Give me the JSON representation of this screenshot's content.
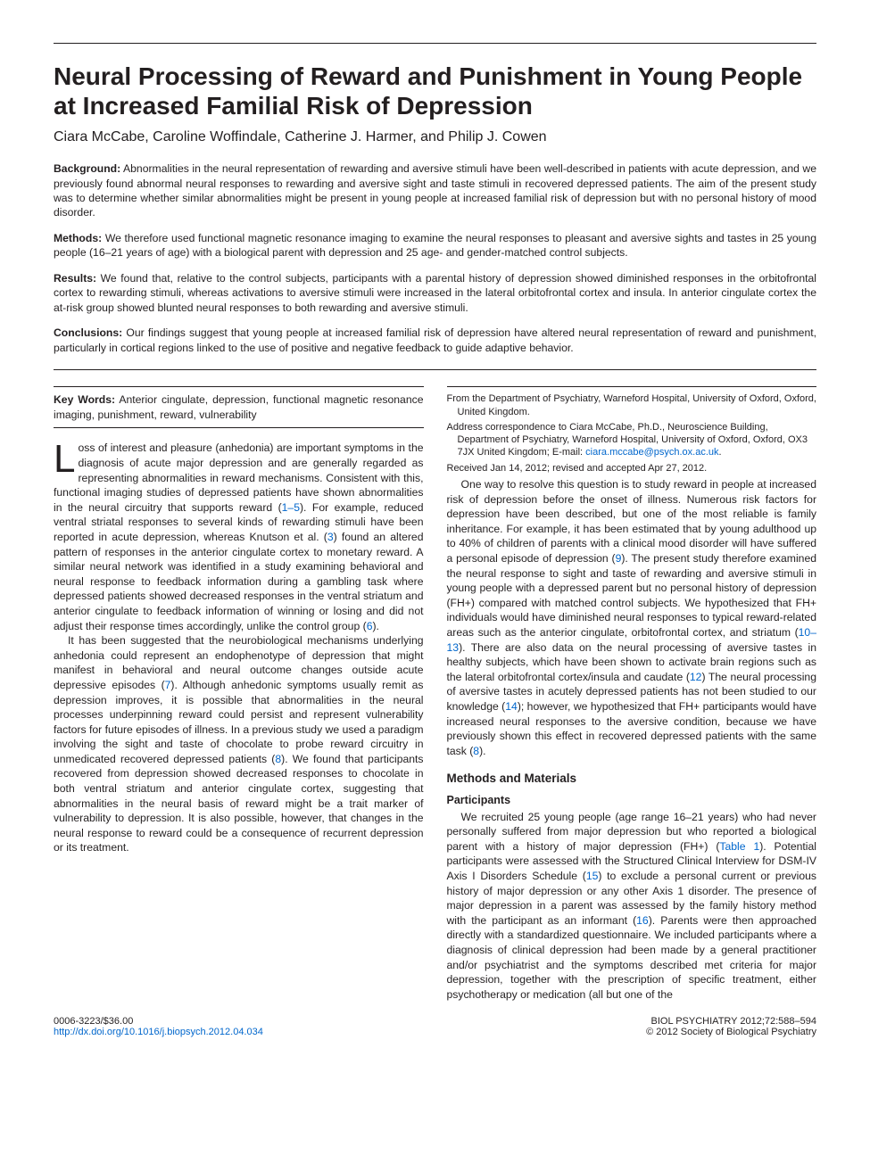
{
  "title": "Neural Processing of Reward and Punishment in Young People at Increased Familial Risk of Depression",
  "authors": "Ciara McCabe, Caroline Woffindale, Catherine J. Harmer, and Philip J. Cowen",
  "abstract": {
    "background": {
      "label": "Background:",
      "text": " Abnormalities in the neural representation of rewarding and aversive stimuli have been well-described in patients with acute depression, and we previously found abnormal neural responses to rewarding and aversive sight and taste stimuli in recovered depressed patients. The aim of the present study was to determine whether similar abnormalities might be present in young people at increased familial risk of depression but with no personal history of mood disorder."
    },
    "methods": {
      "label": "Methods:",
      "text": " We therefore used functional magnetic resonance imaging to examine the neural responses to pleasant and aversive sights and tastes in 25 young people (16–21 years of age) with a biological parent with depression and 25 age- and gender-matched control subjects."
    },
    "results": {
      "label": "Results:",
      "text": " We found that, relative to the control subjects, participants with a parental history of depression showed diminished responses in the orbitofrontal cortex to rewarding stimuli, whereas activations to aversive stimuli were increased in the lateral orbitofrontal cortex and insula. In anterior cingulate cortex the at-risk group showed blunted neural responses to both rewarding and aversive stimuli."
    },
    "conclusions": {
      "label": "Conclusions:",
      "text": " Our findings suggest that young people at increased familial risk of depression have altered neural representation of reward and punishment, particularly in cortical regions linked to the use of positive and negative feedback to guide adaptive behavior."
    }
  },
  "keywords": {
    "label": "Key Words:",
    "text": " Anterior cingulate, depression, functional magnetic resonance imaging, punishment, reward, vulnerability"
  },
  "body": {
    "p1_dropcap": "L",
    "p1": "oss of interest and pleasure (anhedonia) are important symptoms in the diagnosis of acute major depression and are generally regarded as representing abnormalities in reward mechanisms. Consistent with this, functional imaging studies of depressed patients have shown abnormalities in the neural circuitry that supports reward (",
    "p1_ref1": "1–5",
    "p1_b": "). For example, reduced ventral striatal responses to several kinds of rewarding stimuli have been reported in acute depression, whereas Knutson et al. (",
    "p1_ref2": "3",
    "p1_c": ") found an altered pattern of responses in the anterior cingulate cortex to monetary reward. A similar neural network was identified in a study examining behavioral and neural response to feedback information during a gambling task where depressed patients showed decreased responses in the ventral striatum and anterior cingulate to feedback information of winning or losing and did not adjust their response times accordingly, unlike the control group (",
    "p1_ref3": "6",
    "p1_d": ").",
    "p2_a": "It has been suggested that the neurobiological mechanisms underlying anhedonia could represent an endophenotype of depression that might manifest in behavioral and neural outcome changes outside acute depressive episodes (",
    "p2_ref1": "7",
    "p2_b": "). Although anhedonic symptoms usually remit as depression improves, it is possible that abnormalities in the neural processes underpinning reward could persist and represent vulnerability factors for future episodes of illness. In a previous study we used a paradigm involving the sight and taste of chocolate to probe reward circuitry in unmedicated recovered depressed patients (",
    "p2_ref2": "8",
    "p2_c": "). We found that participants recovered from depression showed decreased responses to chocolate in both ventral striatum and anterior cingulate cortex, suggesting that abnormalities in the neural basis of reward might be a trait marker of vulnerability to depression. It is also possible, however, that changes in the neural response to reward could be a consequence of recurrent depression or its treatment.",
    "p3_a": "One way to resolve this question is to study reward in people at increased risk of depression before the onset of illness. Numerous risk factors for depression have been described, but one of the most reliable is family inheritance. For example, it has been estimated that by young adulthood up to 40% of children of parents with a clinical mood disorder will have suffered a personal episode of depression (",
    "p3_ref1": "9",
    "p3_b": "). The present study therefore examined the neural response to sight and taste of rewarding and aversive stimuli in young people with a depressed parent but no personal history of depression (FH+) compared with matched control subjects. We hypothesized that FH+ individuals would have diminished neural responses to typical reward-related areas such as the anterior cingulate, orbitofrontal cortex, and striatum (",
    "p3_ref2": "10–13",
    "p3_c": "). There are also data on the neural processing of aversive tastes in healthy subjects, which have been shown to activate brain regions such as the lateral orbitofrontal cortex/insula and caudate (",
    "p3_ref3": "12",
    "p3_d": ") The neural processing of aversive tastes in acutely depressed patients has not been studied to our knowledge (",
    "p3_ref4": "14",
    "p3_e": "); however, we hypothesized that FH+ participants would have increased neural responses to the aversive condition, because we have previously shown this effect in recovered depressed patients with the same task (",
    "p3_ref5": "8",
    "p3_f": ")."
  },
  "methods_heading": "Methods and Materials",
  "participants_heading": "Participants",
  "methods": {
    "p1_a": "We recruited 25 young people (age range 16–21 years) who had never personally suffered from major depression but who reported a biological parent with a history of major depression (FH+) (",
    "p1_ref1": "Table 1",
    "p1_b": "). Potential participants were assessed with the Structured Clinical Interview for DSM-IV Axis I Disorders Schedule (",
    "p1_ref2": "15",
    "p1_c": ") to exclude a personal current or previous history of major depression or any other Axis 1 disorder. The presence of major depression in a parent was assessed by the family history method with the participant as an informant (",
    "p1_ref3": "16",
    "p1_d": "). Parents were then approached directly with a standardized questionnaire. We included participants where a diagnosis of clinical depression had been made by a general practitioner and/or psychiatrist and the symptoms described met criteria for major depression, together with the prescription of specific treatment, either psychotherapy or medication (all but one of the"
  },
  "footnotes": {
    "from": "From the Department of Psychiatry, Warneford Hospital, University of Oxford, Oxford, United Kingdom.",
    "address_a": "Address correspondence to Ciara McCabe, Ph.D., Neuroscience Building, Department of Psychiatry, Warneford Hospital, University of Oxford, Oxford, OX3 7JX United Kingdom; E-mail: ",
    "email": "ciara.mccabe@psych.ox.ac.uk",
    "address_b": ".",
    "received": "Received Jan 14, 2012; revised and accepted Apr 27, 2012."
  },
  "footer": {
    "issn": "0006-3223/$36.00",
    "doi": "http://dx.doi.org/10.1016/j.biopsych.2012.04.034",
    "journal": "BIOL PSYCHIATRY 2012;72:588–594",
    "copyright": "© 2012 Society of Biological Psychiatry"
  }
}
